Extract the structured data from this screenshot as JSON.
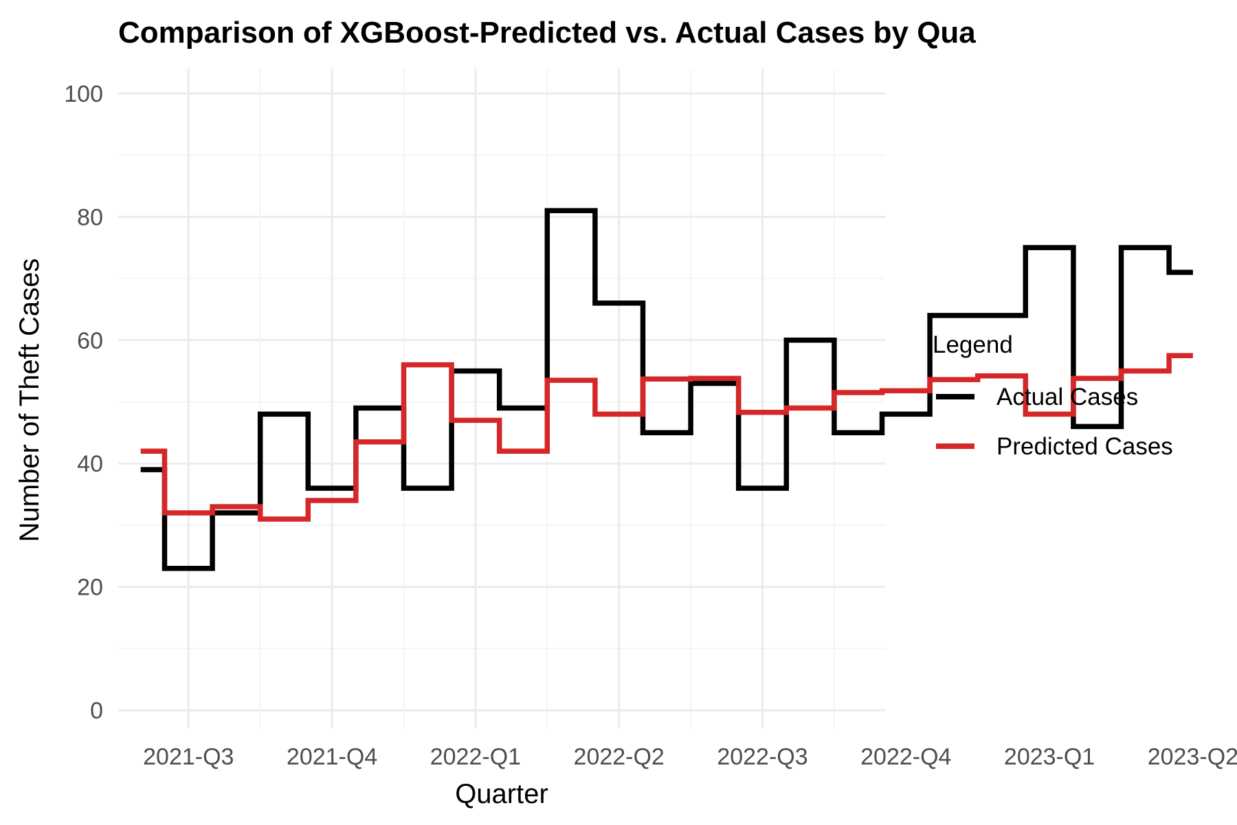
{
  "chart_data": {
    "type": "line",
    "step": "mid",
    "title": "Comparison of XGBoost-Predicted vs. Actual Cases by Qua",
    "xlabel": "Quarter",
    "ylabel": "Number of Theft Cases",
    "ylim": [
      -3,
      104
    ],
    "y_ticks": [
      0,
      20,
      40,
      60,
      80,
      100
    ],
    "x_tick_labels": [
      "2021-Q3",
      "2021-Q4",
      "2022-Q1",
      "2022-Q2",
      "2022-Q3",
      "2022-Q4",
      "2023-Q1",
      "2023-Q2"
    ],
    "grid": true,
    "legend": {
      "title": "Legend",
      "position": "right"
    },
    "series": [
      {
        "name": "Actual Cases",
        "color": "#000000",
        "values": [
          39,
          23,
          32,
          48,
          36,
          49,
          36,
          55,
          49,
          81,
          66,
          45,
          53,
          36,
          60,
          45,
          48,
          64,
          64,
          75,
          46,
          75,
          71
        ]
      },
      {
        "name": "Predicted Cases",
        "color": "#d62728",
        "values": [
          42,
          32,
          33,
          31,
          34,
          43.5,
          56,
          47,
          42,
          53.5,
          48,
          53.7,
          53.8,
          48.3,
          49,
          51.5,
          51.8,
          53.6,
          54.2,
          48,
          53.8,
          55,
          57.5
        ]
      }
    ]
  }
}
